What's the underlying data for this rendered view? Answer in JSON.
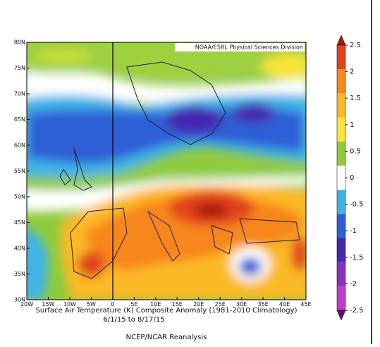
{
  "map": {
    "credit": "NOAA/ESRL Physical Sciences Division",
    "lat_ticks": [
      {
        "value": 80,
        "label": "80N"
      },
      {
        "value": 75,
        "label": "75N"
      },
      {
        "value": 70,
        "label": "70N"
      },
      {
        "value": 65,
        "label": "65N"
      },
      {
        "value": 60,
        "label": "60N"
      },
      {
        "value": 55,
        "label": "55N"
      },
      {
        "value": 50,
        "label": "50N"
      },
      {
        "value": 45,
        "label": "45N"
      },
      {
        "value": 40,
        "label": "40N"
      },
      {
        "value": 35,
        "label": "35N"
      },
      {
        "value": 30,
        "label": "30N"
      }
    ],
    "lon_ticks": [
      {
        "value": -20,
        "label": "20W"
      },
      {
        "value": -15,
        "label": "15W"
      },
      {
        "value": -10,
        "label": "10W"
      },
      {
        "value": -5,
        "label": "5W"
      },
      {
        "value": 0,
        "label": "0"
      },
      {
        "value": 5,
        "label": "5E"
      },
      {
        "value": 10,
        "label": "10E"
      },
      {
        "value": 15,
        "label": "15E"
      },
      {
        "value": 20,
        "label": "20E"
      },
      {
        "value": 25,
        "label": "25E"
      },
      {
        "value": 30,
        "label": "30E"
      },
      {
        "value": 35,
        "label": "35E"
      },
      {
        "value": 40,
        "label": "40E"
      },
      {
        "value": 45,
        "label": "45E"
      }
    ],
    "caption": "Surface Air Temperature (K) Composite Anomaly (1981-2010 Climatology)",
    "dates": "6/1/15  to  8/17/15",
    "source": "NCEP/NCAR Reanalysis"
  },
  "colorbar": {
    "ticks": [
      2.5,
      2,
      1.5,
      1,
      0.5,
      0,
      -0.5,
      -1,
      -1.5,
      -2,
      -2.5
    ],
    "colors": [
      "#a8180f",
      "#e2431c",
      "#f7861e",
      "#fbb926",
      "#f8e43a",
      "#8fcb3c",
      "#ffffff",
      "#3fb3e8",
      "#2f5fd6",
      "#4527b0",
      "#8a2fc4",
      "#c23ad0",
      "#5a1470"
    ]
  }
}
